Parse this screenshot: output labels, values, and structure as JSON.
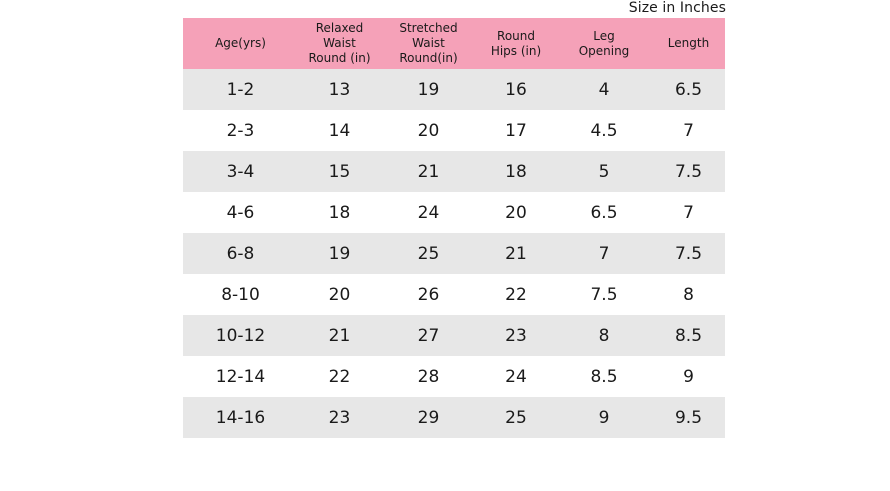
{
  "caption": "Size in Inches",
  "colors": {
    "header_background": "#f5a1b8",
    "shaded_row": "#e7e7e7"
  },
  "headers": [
    "Age(yrs)",
    "Relaxed\nWaist\nRound (in)",
    "Stretched\nWaist\nRound(in)",
    "Round\nHips (in)",
    "Leg\nOpening",
    "Length"
  ],
  "rows": [
    [
      "1-2",
      "13",
      "19",
      "16",
      "4",
      "6.5"
    ],
    [
      "2-3",
      "14",
      "20",
      "17",
      "4.5",
      "7"
    ],
    [
      "3-4",
      "15",
      "21",
      "18",
      "5",
      "7.5"
    ],
    [
      "4-6",
      "18",
      "24",
      "20",
      "6.5",
      "7"
    ],
    [
      "6-8",
      "19",
      "25",
      "21",
      "7",
      "7.5"
    ],
    [
      "8-10",
      "20",
      "26",
      "22",
      "7.5",
      "8"
    ],
    [
      "10-12",
      "21",
      "27",
      "23",
      "8",
      "8.5"
    ],
    [
      "12-14",
      "22",
      "28",
      "24",
      "8.5",
      "9"
    ],
    [
      "14-16",
      "23",
      "29",
      "25",
      "9",
      "9.5"
    ]
  ]
}
